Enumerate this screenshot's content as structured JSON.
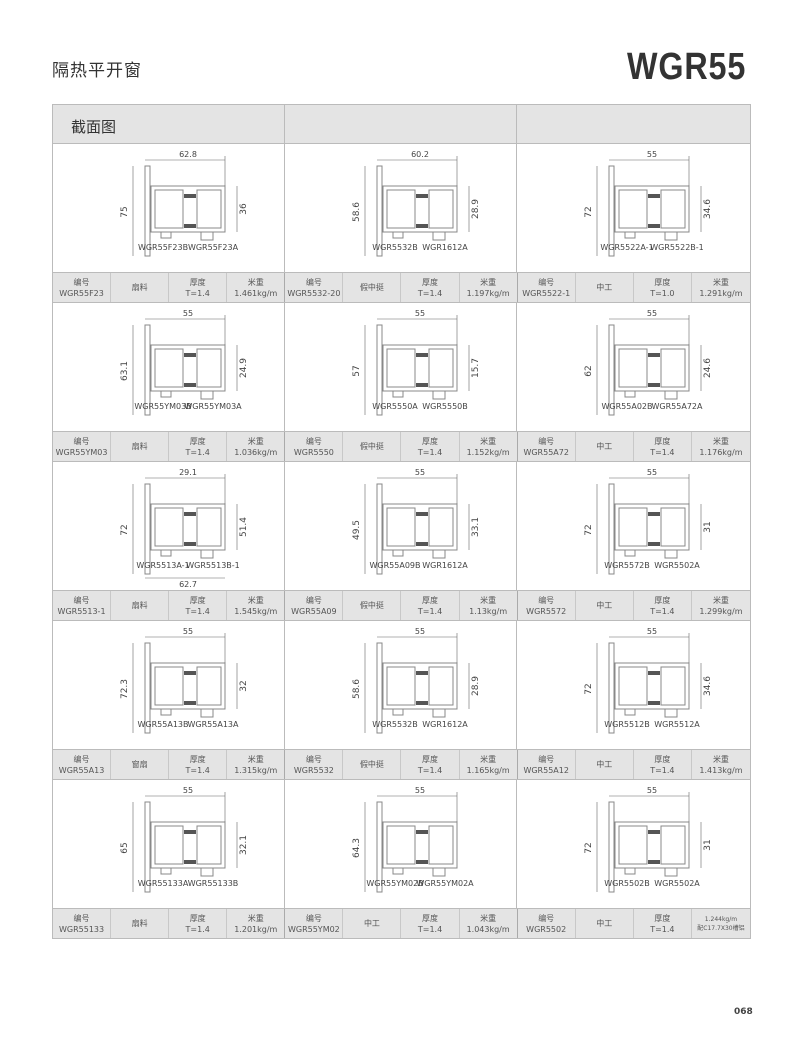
{
  "header": {
    "category": "隔热平开窗",
    "model": "WGR55",
    "section_header": "截面图",
    "page_number": "068"
  },
  "labels": {
    "code": "编号",
    "thickness": "厚度",
    "weight": "米重"
  },
  "colors": {
    "header_bg": "#e4e4e4",
    "line": "#bbbbbb",
    "profile": "#888888",
    "thermal_strip": "#555555"
  },
  "rows": [
    {
      "cells": [
        {
          "height": "75",
          "width": "62.8",
          "inner": "36",
          "parts": [
            "WGR55F23B",
            "WGR55F23A"
          ],
          "code": "WGR55F23",
          "type": "扇料",
          "thickness": "T=1.4",
          "weight": "1.461kg/m"
        },
        {
          "height": "58.6",
          "width": "60.2",
          "inner": "28.9",
          "parts": [
            "WGR5532B",
            "WGR1612A"
          ],
          "code": "WGR5532-20",
          "type": "假中挺",
          "thickness": "T=1.4",
          "weight": "1.197kg/m"
        },
        {
          "height": "72",
          "width": "55",
          "inner": "34.6",
          "parts": [
            "WGR5522A-1",
            "WGR5522B-1"
          ],
          "code": "WGR5522-1",
          "type": "中工",
          "thickness": "T=1.0",
          "weight": "1.291kg/m"
        }
      ]
    },
    {
      "cells": [
        {
          "height": "63.1",
          "width": "55",
          "inner": "24.9",
          "parts": [
            "WGR55YM03B",
            "WGR55YM03A"
          ],
          "code": "WGR55YM03",
          "type": "扇料",
          "thickness": "T=1.4",
          "weight": "1.036kg/m"
        },
        {
          "height": "57",
          "width": "55",
          "inner": "15.7",
          "parts": [
            "WGR5550A",
            "WGR5550B"
          ],
          "code": "WGR5550",
          "type": "假中挺",
          "thickness": "T=1.4",
          "weight": "1.152kg/m"
        },
        {
          "height": "62",
          "width": "55",
          "inner": "24.6",
          "parts": [
            "WGR55A02B",
            "WGR55A72A"
          ],
          "code": "WGR55A72",
          "type": "中工",
          "thickness": "T=1.4",
          "weight": "1.176kg/m"
        }
      ]
    },
    {
      "cells": [
        {
          "height": "72",
          "width": "29.1",
          "extra": "62.7",
          "inner": "51.4",
          "parts": [
            "WGR5513A-1",
            "WGR5513B-1"
          ],
          "code": "WGR5513-1",
          "type": "扇料",
          "thickness": "T=1.4",
          "weight": "1.545kg/m"
        },
        {
          "height": "49.5",
          "width": "55",
          "inner": "33.1",
          "parts": [
            "WGR55A09B",
            "WGR1612A"
          ],
          "code": "WGR55A09",
          "type": "假中挺",
          "thickness": "T=1.4",
          "weight": "1.13kg/m"
        },
        {
          "height": "72",
          "width": "55",
          "inner": "31",
          "parts": [
            "WGR5572B",
            "WGR5502A"
          ],
          "code": "WGR5572",
          "type": "中工",
          "thickness": "T=1.4",
          "weight": "1.299kg/m"
        }
      ]
    },
    {
      "cells": [
        {
          "height": "72.3",
          "width": "55",
          "inner": "32",
          "parts": [
            "WGR55A13B",
            "WGR55A13A"
          ],
          "code": "WGR55A13",
          "type": "窗扇",
          "thickness": "T=1.4",
          "weight": "1.315kg/m"
        },
        {
          "height": "58.6",
          "width": "55",
          "inner": "28.9",
          "parts": [
            "WGR5532B",
            "WGR1612A"
          ],
          "code": "WGR5532",
          "type": "假中挺",
          "thickness": "T=1.4",
          "weight": "1.165kg/m"
        },
        {
          "height": "72",
          "width": "55",
          "inner": "34.6",
          "parts": [
            "WGR5512B",
            "WGR5512A"
          ],
          "code": "WGR55A12",
          "type": "中工",
          "thickness": "T=1.4",
          "weight": "1.413kg/m"
        }
      ]
    },
    {
      "cells": [
        {
          "height": "65",
          "width": "55",
          "inner": "32.1",
          "parts": [
            "WGR55133A",
            "WGR55133B"
          ],
          "code": "WGR55133",
          "type": "扇料",
          "thickness": "T=1.4",
          "weight": "1.201kg/m"
        },
        {
          "height": "64.3",
          "width": "55",
          "inner": "",
          "parts": [
            "WGR55YM02B",
            "WGR55YM02A"
          ],
          "code": "WGR55YM02",
          "type": "中工",
          "thickness": "T=1.4",
          "weight": "1.043kg/m"
        },
        {
          "height": "72",
          "width": "55",
          "inner": "31",
          "parts": [
            "WGR5502B",
            "WGR5502A"
          ],
          "code": "WGR5502",
          "type": "中工",
          "thickness": "T=1.4",
          "weight": "1.244kg/m",
          "note": "配C17.7X30槽铝"
        }
      ]
    }
  ]
}
